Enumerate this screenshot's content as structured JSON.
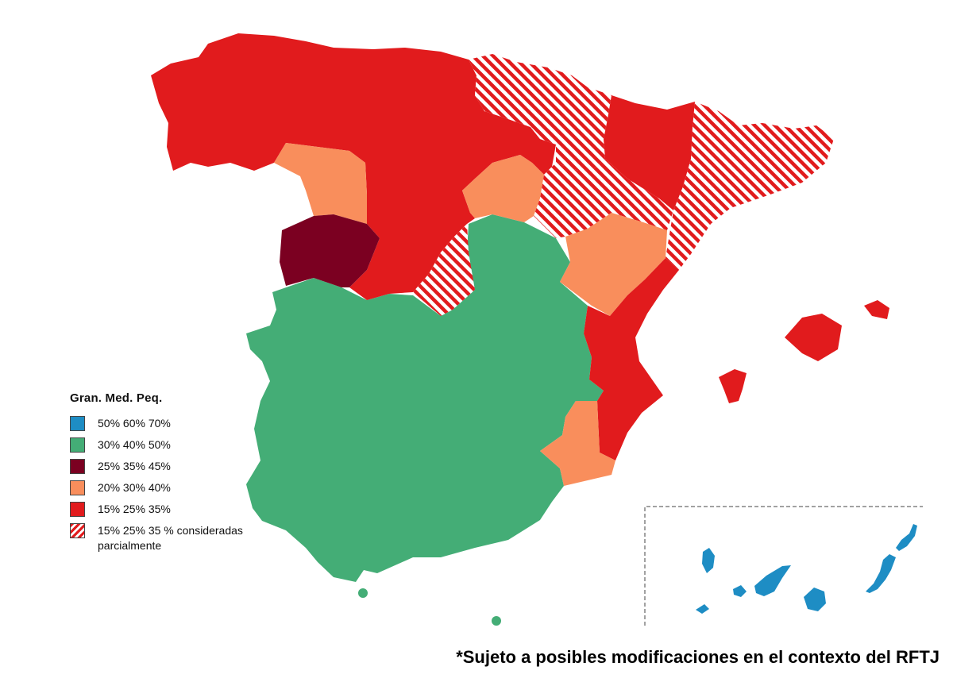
{
  "colors": {
    "blue": "#1e8dc4",
    "green": "#44ad76",
    "maroon": "#7b0021",
    "orange": "#f98e5c",
    "red": "#e11b1d",
    "hatch": "#e11b1d"
  },
  "legend": {
    "title": "Gran. Med. Peq.",
    "items": [
      {
        "label": "50% 60% 70%",
        "color": "#1e8dc4",
        "pattern": "solid"
      },
      {
        "label": "30% 40% 50%",
        "color": "#44ad76",
        "pattern": "solid"
      },
      {
        "label": "25% 35% 45%",
        "color": "#7b0021",
        "pattern": "solid"
      },
      {
        "label": "20% 30% 40%",
        "color": "#f98e5c",
        "pattern": "solid"
      },
      {
        "label": "15% 25% 35%",
        "color": "#e11b1d",
        "pattern": "solid"
      },
      {
        "label": "15% 25% 35 % consideradas parcialmente",
        "color": "#e11b1d",
        "pattern": "hatched"
      }
    ]
  },
  "footnote": "*Sujeto a posibles modificaciones en el contexto del RFTJ"
}
